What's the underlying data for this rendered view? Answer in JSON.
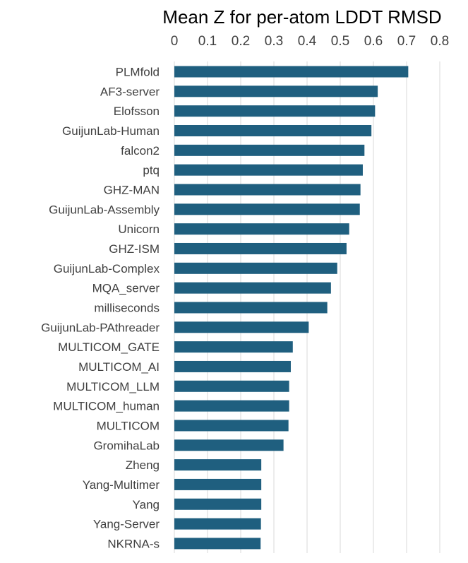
{
  "chart_data": {
    "type": "bar",
    "orientation": "horizontal",
    "title": "Mean Z for per-atom LDDT RMSD",
    "xlabel": "",
    "ylabel": "",
    "xlim": [
      0,
      0.8
    ],
    "x_ticks": [
      "0",
      "0.1",
      "0.2",
      "0.3",
      "0.4",
      "0.5",
      "0.6",
      "0.7",
      "0.8"
    ],
    "x_tick_values": [
      0,
      0.1,
      0.2,
      0.3,
      0.4,
      0.5,
      0.6,
      0.7,
      0.8
    ],
    "x_axis_position": "top",
    "grid": true,
    "legend": "none",
    "bar_color": "#1f5f7f",
    "categories": [
      "PLMfold",
      "AF3-server",
      "Elofsson",
      "GuijunLab-Human",
      "falcon2",
      "ptq",
      "GHZ-MAN",
      "GuijunLab-Assembly",
      "Unicorn",
      "GHZ-ISM",
      "GuijunLab-Complex",
      "MQA_server",
      "milliseconds",
      "GuijunLab-PAthreader",
      "MULTICOM_GATE",
      "MULTICOM_AI",
      "MULTICOM_LLM",
      "MULTICOM_human",
      "MULTICOM",
      "GromihaLab",
      "Zheng",
      "Yang-Multimer",
      "Yang",
      "Yang-Server",
      "NKRNA-s"
    ],
    "values": [
      0.705,
      0.613,
      0.605,
      0.594,
      0.573,
      0.568,
      0.561,
      0.559,
      0.527,
      0.519,
      0.491,
      0.472,
      0.461,
      0.405,
      0.357,
      0.351,
      0.346,
      0.346,
      0.344,
      0.329,
      0.262,
      0.262,
      0.262,
      0.261,
      0.26
    ]
  }
}
